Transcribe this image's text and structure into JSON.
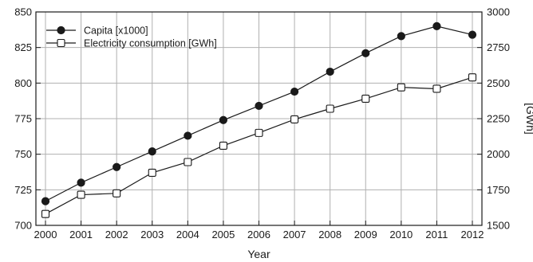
{
  "chart_data": {
    "type": "line",
    "xlabel": "Year",
    "ylabel_left": "",
    "ylabel_right": "[GWh]",
    "x": [
      "2000",
      "2001",
      "2002",
      "2003",
      "2004",
      "2005",
      "2006",
      "2007",
      "2008",
      "2009",
      "2010",
      "2011",
      "2012"
    ],
    "ylim_left": [
      700,
      850
    ],
    "yticks_left": [
      700,
      725,
      750,
      775,
      800,
      825,
      850
    ],
    "ylim_right": [
      1500,
      3000
    ],
    "yticks_right": [
      1500,
      1750,
      2000,
      2250,
      2500,
      2750,
      3000
    ],
    "grid": true,
    "legend_position": "top-left",
    "series": [
      {
        "name": "Capita [x1000]",
        "axis": "left",
        "marker": "filled-circle",
        "values": [
          717,
          730,
          741,
          752,
          763,
          774,
          784,
          794,
          808,
          821,
          833,
          840,
          834
        ]
      },
      {
        "name": "Electricity consumption [GWh]",
        "axis": "right",
        "marker": "open-square",
        "values": [
          1580,
          1715,
          1725,
          1870,
          1945,
          2060,
          2150,
          2245,
          2320,
          2390,
          2470,
          2460,
          2540
        ]
      }
    ],
    "colors": {
      "line": "#1a1a1a",
      "grid": "#b0b0b0",
      "marker_fill": "#1a1a1a",
      "open_marker_fill": "#ffffff"
    }
  }
}
